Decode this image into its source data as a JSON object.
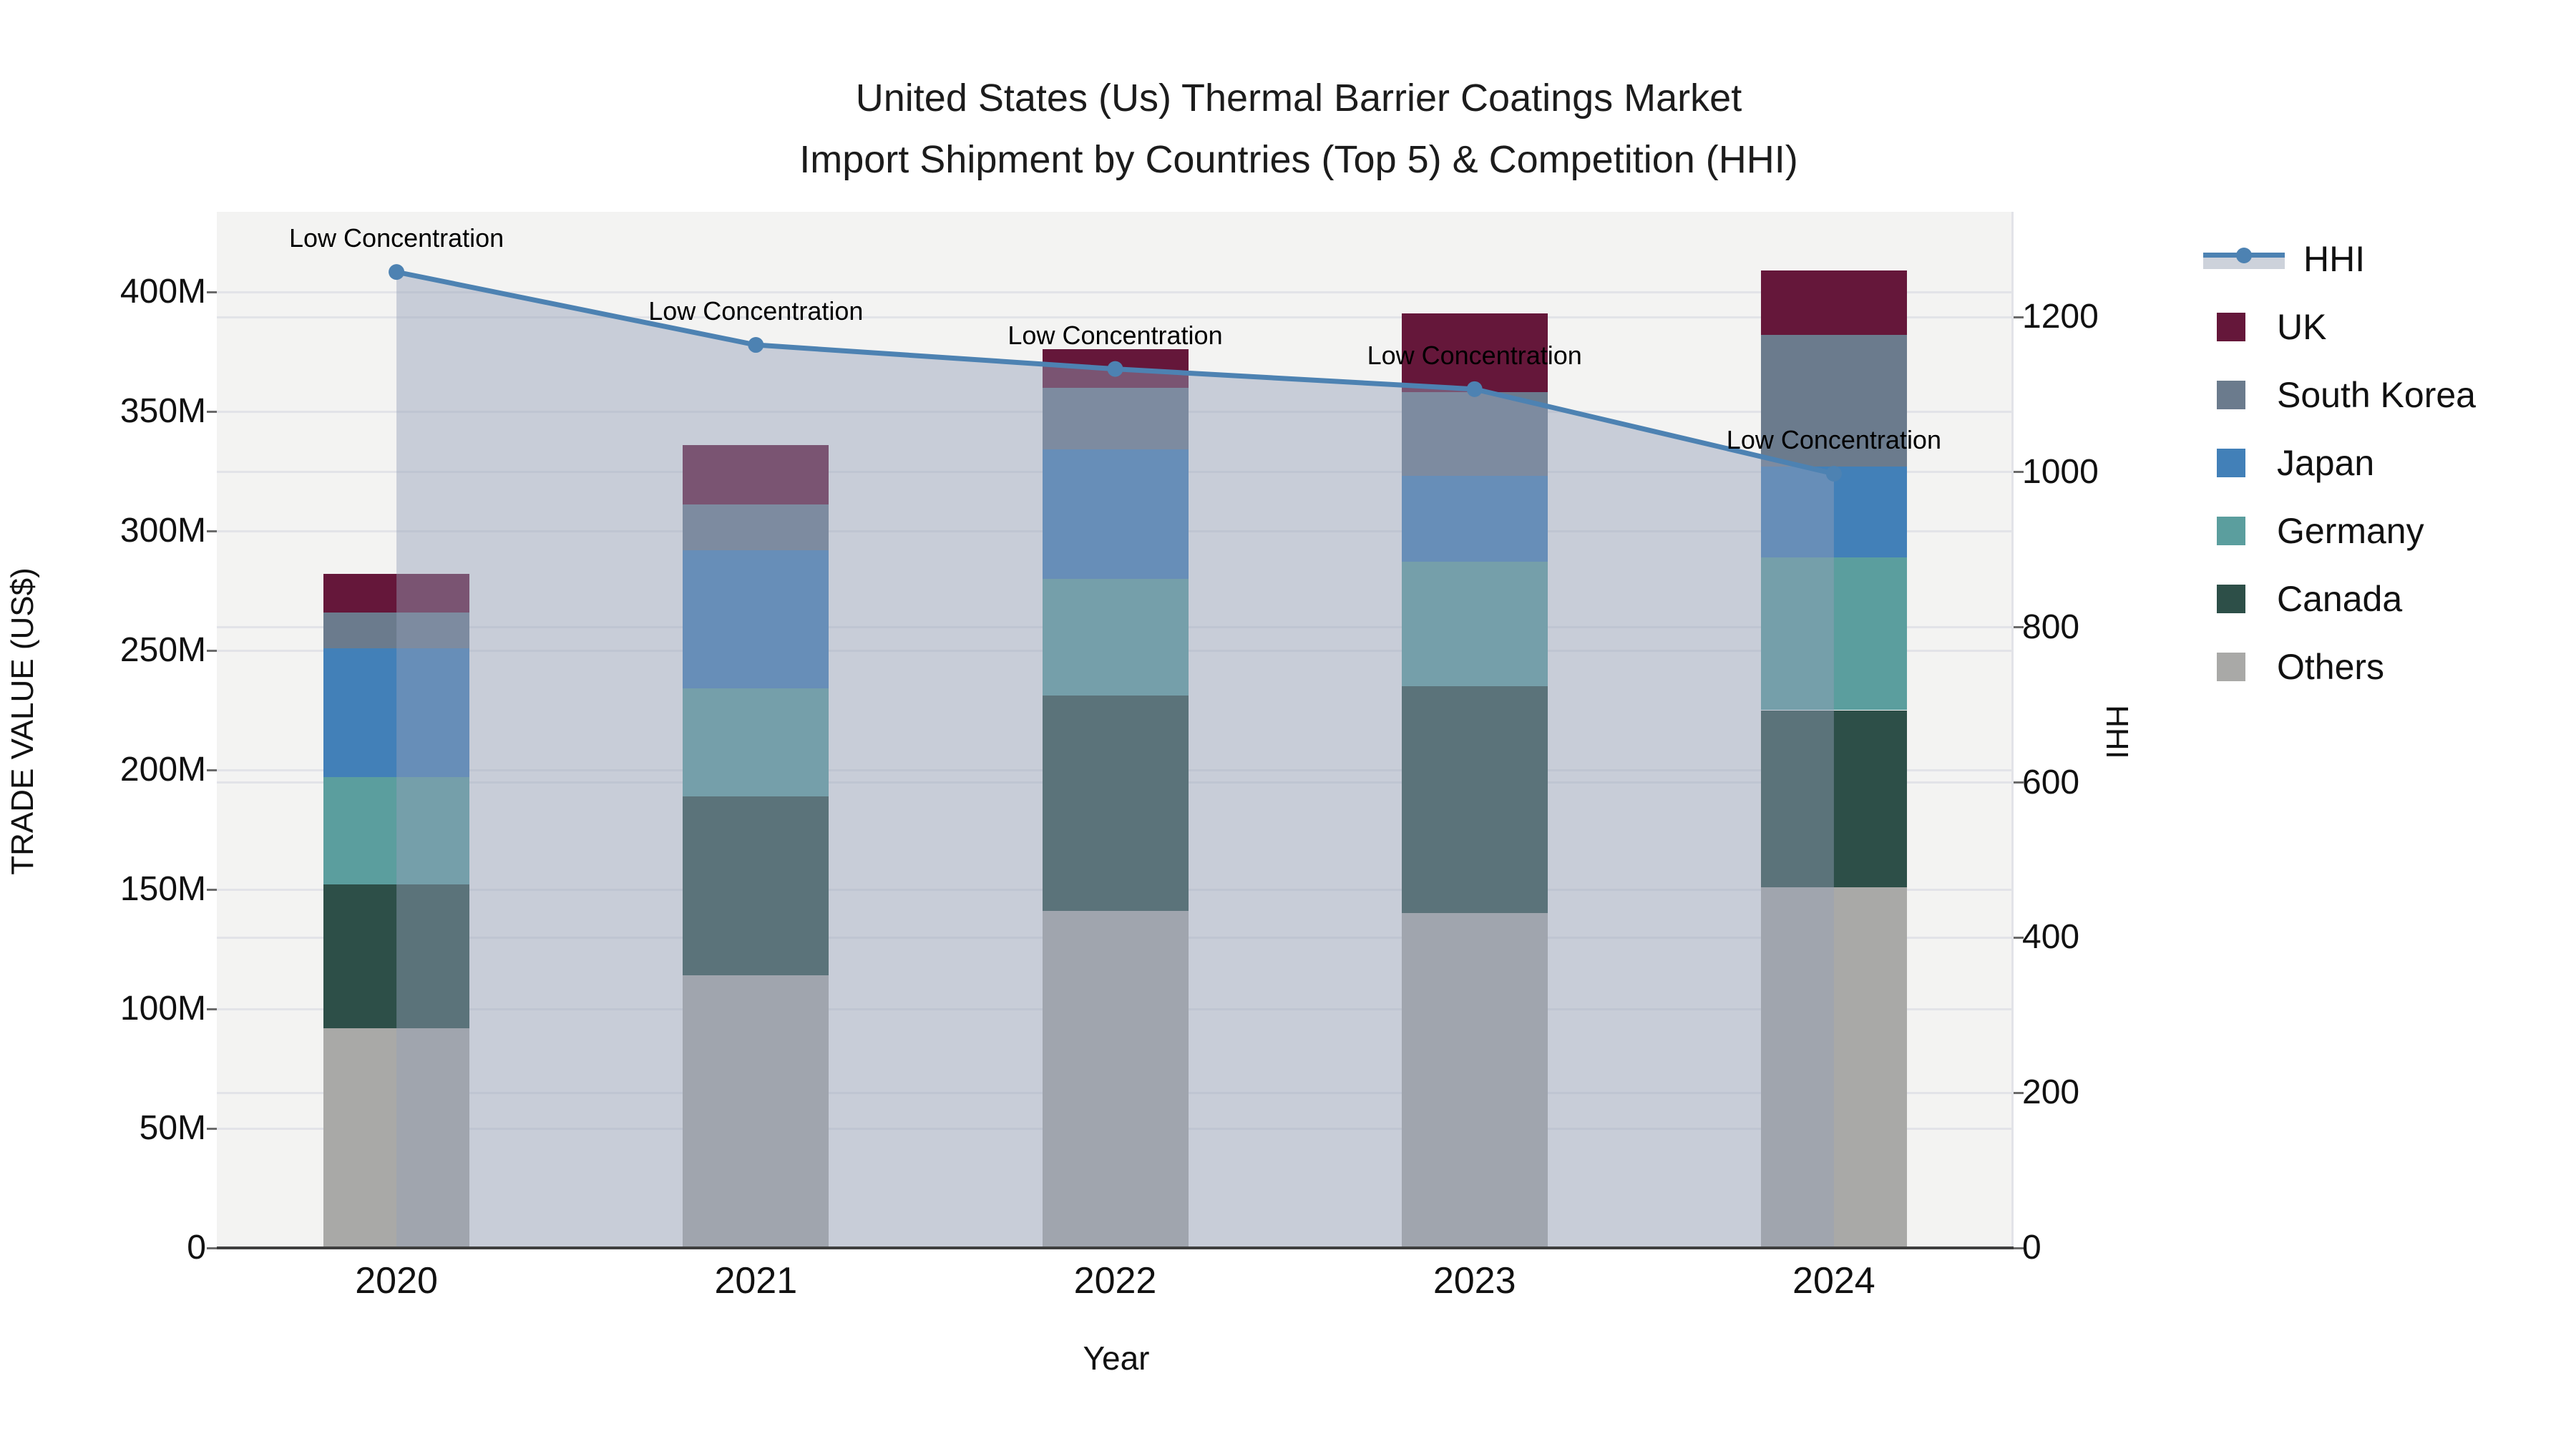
{
  "title": {
    "line1": "United States (Us) Thermal Barrier Coatings Market",
    "line2": "Import Shipment by Countries (Top 5) & Competition (HHI)"
  },
  "axes": {
    "y_left": {
      "title": "TRADE VALUE (US$)",
      "ticks": [
        {
          "label": "0",
          "value": 0
        },
        {
          "label": "50M",
          "value": 50
        },
        {
          "label": "100M",
          "value": 100
        },
        {
          "label": "150M",
          "value": 150
        },
        {
          "label": "200M",
          "value": 200
        },
        {
          "label": "250M",
          "value": 250
        },
        {
          "label": "300M",
          "value": 300
        },
        {
          "label": "350M",
          "value": 350
        },
        {
          "label": "400M",
          "value": 400
        }
      ]
    },
    "y_right": {
      "title": "HHI",
      "ticks": [
        {
          "label": "0",
          "value": 0
        },
        {
          "label": "200",
          "value": 200
        },
        {
          "label": "400",
          "value": 400
        },
        {
          "label": "600",
          "value": 600
        },
        {
          "label": "800",
          "value": 800
        },
        {
          "label": "1000",
          "value": 1000
        },
        {
          "label": "1200",
          "value": 1200
        }
      ]
    },
    "x": {
      "title": "Year"
    }
  },
  "legend": {
    "items": [
      {
        "label": "HHI",
        "type": "line",
        "color": "#4d82b2"
      },
      {
        "label": "UK",
        "type": "square",
        "color": "#65173a"
      },
      {
        "label": "South Korea",
        "type": "square",
        "color": "#6b7b8d"
      },
      {
        "label": "Japan",
        "type": "square",
        "color": "#4280b8"
      },
      {
        "label": "Germany",
        "type": "square",
        "color": "#5b9e9e"
      },
      {
        "label": "Canada",
        "type": "square",
        "color": "#2d4f48"
      },
      {
        "label": "Others",
        "type": "square",
        "color": "#a9a9a7"
      }
    ]
  },
  "chart_data": {
    "type": "bar",
    "subtype": "stacked-bars-with-line",
    "categories": [
      "2020",
      "2021",
      "2022",
      "2023",
      "2024"
    ],
    "value_unit": "M US$",
    "series": [
      {
        "name": "Others",
        "color": "#a9a9a7",
        "values": [
          92,
          114,
          141,
          140,
          151
        ]
      },
      {
        "name": "Canada",
        "color": "#2d4f48",
        "values": [
          60,
          75,
          90,
          95,
          74
        ]
      },
      {
        "name": "Germany",
        "color": "#5b9e9e",
        "values": [
          45,
          45,
          49,
          52,
          64
        ]
      },
      {
        "name": "Japan",
        "color": "#4280b8",
        "values": [
          54,
          58,
          54,
          36,
          38
        ]
      },
      {
        "name": "South Korea",
        "color": "#6b7b8d",
        "values": [
          15,
          19,
          26,
          35,
          55
        ]
      },
      {
        "name": "UK",
        "color": "#65173a",
        "values": [
          16,
          25,
          16,
          33,
          27
        ]
      }
    ],
    "bar_totals": [
      282,
      336,
      376,
      391,
      409
    ],
    "line_series": {
      "name": "HHI",
      "color": "#4d82b2",
      "area_fill": "rgba(148,160,184,0.45)",
      "values": [
        1258,
        1164,
        1133,
        1107,
        998
      ],
      "annotations": [
        "Low Concentration",
        "Low Concentration",
        "Low Concentration",
        "Low Concentration",
        "Low Concentration"
      ]
    },
    "title": "United States (Us) Thermal Barrier Coatings Market Import Shipment by Countries (Top 5) & Competition (HHI)",
    "xlabel": "Year",
    "ylabel_left": "TRADE VALUE (US$)",
    "ylabel_right": "HHI",
    "ylim_left": [
      0,
      433
    ],
    "ylim_right": [
      0,
      1335
    ],
    "grid": true,
    "legend_position": "right"
  }
}
